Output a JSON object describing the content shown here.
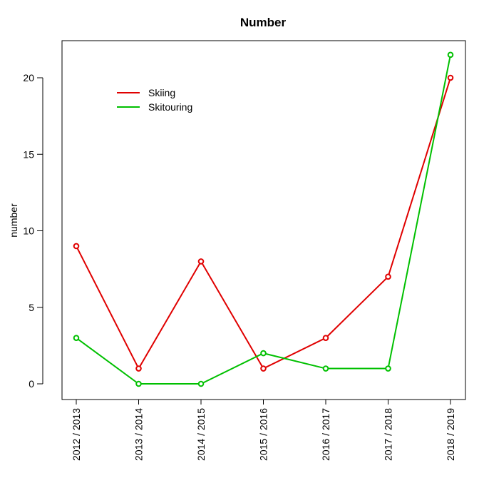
{
  "chart_data": {
    "type": "line",
    "title": "Number",
    "xlabel": "",
    "ylabel": "number",
    "categories": [
      "2012 / 2013",
      "2013 / 2014",
      "2014 / 2015",
      "2015 / 2016",
      "2016 / 2017",
      "2017 / 2018",
      "2018 / 2019"
    ],
    "yticks": [
      0,
      5,
      10,
      15,
      20
    ],
    "ylim": [
      -1,
      22.4
    ],
    "grid": false,
    "legend_position": "top-left",
    "series": [
      {
        "name": "Skiing",
        "color": "#e00000",
        "values": [
          9,
          1,
          8,
          1,
          3,
          7,
          20
        ]
      },
      {
        "name": "Skitouring",
        "color": "#00c000",
        "values": [
          3,
          0,
          0,
          2,
          1,
          1,
          21.5
        ]
      }
    ]
  }
}
